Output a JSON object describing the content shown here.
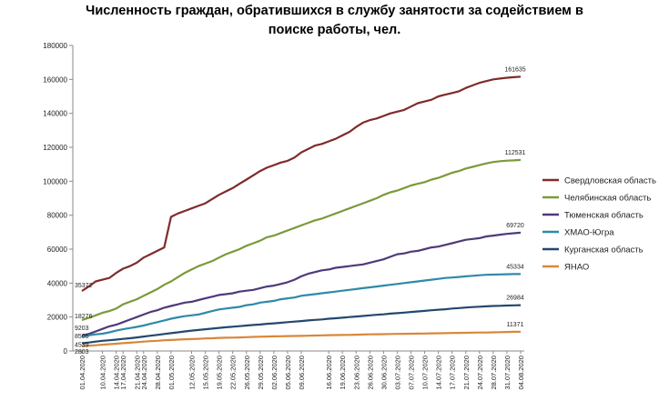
{
  "chart_data": {
    "type": "line",
    "title_lines": [
      "Численность граждан, обратившихся в службу занятости за содействием в",
      "поиске работы, чел."
    ],
    "xlabel": "",
    "ylabel": "",
    "ylim": [
      0,
      180000
    ],
    "yticks": [
      0,
      20000,
      40000,
      60000,
      80000,
      100000,
      120000,
      140000,
      160000,
      180000
    ],
    "grid": false,
    "legend_position": "right",
    "x": [
      "01.04.2020",
      "03.04.2020",
      "07.04.2020",
      "10.04.2020",
      "12.04.2020",
      "14.04.2020",
      "17.04.2020",
      "19.04.2020",
      "21.04.2020",
      "24.04.2020",
      "26.04.2020",
      "28.04.2020",
      "30.04.2020",
      "01.05.2020",
      "05.05.2020",
      "08.05.2020",
      "12.05.2020",
      "13.05.2020",
      "15.05.2020",
      "17.05.2020",
      "19.05.2020",
      "20.05.2020",
      "22.05.2020",
      "24.05.2020",
      "26.05.2020",
      "27.05.2020",
      "29.05.2020",
      "31.05.2020",
      "02.06.2020",
      "03.06.2020",
      "05.06.2020",
      "07.06.2020",
      "09.06.2020",
      "10.06.2020",
      "12.06.2020",
      "14.06.2020",
      "16.06.2020",
      "17.06.2020",
      "19.06.2020",
      "21.06.2020",
      "23.06.2020",
      "24.06.2020",
      "26.06.2020",
      "28.06.2020",
      "30.06.2020",
      "01.07.2020",
      "03.07.2020",
      "05.07.2020",
      "07.07.2020",
      "08.07.2020",
      "10.07.2020",
      "12.07.2020",
      "14.07.2020",
      "15.07.2020",
      "17.07.2020",
      "19.07.2020",
      "21.07.2020",
      "22.07.2020",
      "24.07.2020",
      "26.07.2020",
      "28.07.2020",
      "29.07.2020",
      "31.07.2020",
      "02.08.2020",
      "04.08.2020"
    ],
    "xtick_labels": [
      "01.04.2020",
      "10.04.2020",
      "14.04.2020",
      "17.04.2020",
      "21.04.2020",
      "24.04.2020",
      "28.04.2020",
      "01.05.2020",
      "12.05.2020",
      "15.05.2020",
      "19.05.2020",
      "22.05.2020",
      "26.05.2020",
      "29.05.2020",
      "02.06.2020",
      "05.06.2020",
      "09.06.2020",
      "16.06.2020",
      "19.06.2020",
      "23.06.2020",
      "26.06.2020",
      "30.06.2020",
      "03.07.2020",
      "07.07.2020",
      "10.07.2020",
      "14.07.2020",
      "17.07.2020",
      "21.07.2020",
      "24.07.2020",
      "28.07.2020",
      "31.07.2020",
      "04.08.2020"
    ],
    "series": [
      {
        "name": "Свердловская область",
        "color": "#7f2b2b",
        "start_label": "35372",
        "end_label": "161635",
        "values": [
          35372,
          38000,
          41000,
          42000,
          43000,
          46000,
          48500,
          50000,
          52000,
          55000,
          57000,
          59000,
          61000,
          79000,
          81000,
          82500,
          84000,
          85500,
          87000,
          89500,
          92000,
          94000,
          96000,
          98500,
          101000,
          103500,
          106000,
          108000,
          109500,
          111000,
          112000,
          114000,
          117000,
          119000,
          121000,
          122000,
          123500,
          125000,
          127000,
          129000,
          132000,
          134500,
          136000,
          137000,
          138500,
          140000,
          141000,
          142000,
          144000,
          146000,
          147000,
          148000,
          150000,
          151000,
          152000,
          153000,
          155000,
          156500,
          158000,
          159000,
          160000,
          160500,
          161000,
          161300,
          161635
        ]
      },
      {
        "name": "Челябинская область",
        "color": "#7a9a3a",
        "start_label": "18276",
        "end_label": "112531",
        "values": [
          18276,
          19500,
          21000,
          22500,
          23500,
          25000,
          27500,
          29000,
          30500,
          32500,
          34500,
          36500,
          39000,
          41000,
          43500,
          46000,
          48000,
          50000,
          51500,
          53000,
          55000,
          57000,
          58500,
          60000,
          62000,
          63500,
          65000,
          67000,
          68000,
          69500,
          71000,
          72500,
          74000,
          75500,
          77000,
          78000,
          79500,
          81000,
          82500,
          84000,
          85500,
          87000,
          88500,
          90000,
          92000,
          93500,
          94500,
          96000,
          97500,
          98500,
          99500,
          101000,
          102000,
          103500,
          105000,
          106000,
          107500,
          108500,
          109500,
          110500,
          111300,
          111800,
          112100,
          112300,
          112531
        ]
      },
      {
        "name": "Тюменская область",
        "color": "#4f3a78",
        "start_label": "9203",
        "end_label": "69720",
        "values": [
          9203,
          10000,
          11500,
          13000,
          14500,
          15500,
          17000,
          18500,
          20000,
          21500,
          23000,
          24000,
          25500,
          26500,
          27500,
          28500,
          29000,
          30000,
          31000,
          32000,
          33000,
          33500,
          34000,
          35000,
          35500,
          36000,
          37000,
          38000,
          38500,
          39500,
          40500,
          42000,
          44000,
          45500,
          46500,
          47500,
          48000,
          49000,
          49500,
          50000,
          50500,
          51000,
          52000,
          53000,
          54000,
          55500,
          57000,
          57500,
          58500,
          59000,
          60000,
          61000,
          61500,
          62500,
          63500,
          64500,
          65500,
          66000,
          66500,
          67500,
          68000,
          68500,
          69000,
          69400,
          69720
        ]
      },
      {
        "name": "ХМАО-Югра",
        "color": "#2f8aa8",
        "start_label": "8506",
        "end_label": "45334",
        "values": [
          8506,
          9200,
          9800,
          10200,
          11000,
          12000,
          12800,
          13500,
          14200,
          15000,
          16000,
          17000,
          18000,
          19000,
          19800,
          20500,
          21000,
          21500,
          22500,
          23500,
          24500,
          25000,
          25500,
          26000,
          27000,
          27500,
          28500,
          29000,
          29500,
          30500,
          31000,
          31500,
          32500,
          33000,
          33500,
          34000,
          34500,
          35000,
          35500,
          36000,
          36500,
          37000,
          37500,
          38000,
          38500,
          39000,
          39500,
          40000,
          40500,
          41000,
          41500,
          42000,
          42500,
          43000,
          43300,
          43600,
          44000,
          44300,
          44600,
          44900,
          45000,
          45100,
          45200,
          45300,
          45334
        ]
      },
      {
        "name": "Курганская область",
        "color": "#24486e",
        "start_label": "4539",
        "end_label": "26984",
        "values": [
          4539,
          5000,
          5500,
          6000,
          6300,
          6700,
          7100,
          7500,
          8000,
          8500,
          9000,
          9500,
          10000,
          10500,
          11000,
          11500,
          12000,
          12400,
          12800,
          13200,
          13600,
          14000,
          14300,
          14600,
          15000,
          15300,
          15600,
          16000,
          16300,
          16600,
          17000,
          17300,
          17600,
          18000,
          18300,
          18600,
          19000,
          19300,
          19600,
          20000,
          20300,
          20600,
          21000,
          21300,
          21600,
          22000,
          22300,
          22600,
          23000,
          23300,
          23600,
          24000,
          24300,
          24600,
          25000,
          25300,
          25600,
          25900,
          26100,
          26300,
          26500,
          26650,
          26800,
          26900,
          26984
        ]
      },
      {
        "name": "ЯНАО",
        "color": "#d8873a",
        "start_label": "2803",
        "end_label": "11371",
        "values": [
          2803,
          3100,
          3400,
          3700,
          4000,
          4300,
          4600,
          4900,
          5200,
          5500,
          5800,
          6000,
          6300,
          6500,
          6700,
          6900,
          7000,
          7200,
          7400,
          7500,
          7700,
          7800,
          7900,
          8000,
          8150,
          8300,
          8400,
          8500,
          8600,
          8700,
          8800,
          8850,
          8900,
          9000,
          9100,
          9200,
          9300,
          9400,
          9450,
          9500,
          9600,
          9700,
          9800,
          9850,
          9900,
          10000,
          10050,
          10100,
          10200,
          10250,
          10300,
          10400,
          10450,
          10500,
          10600,
          10650,
          10700,
          10800,
          10850,
          10900,
          11000,
          11100,
          11200,
          11300,
          11371
        ]
      }
    ]
  }
}
